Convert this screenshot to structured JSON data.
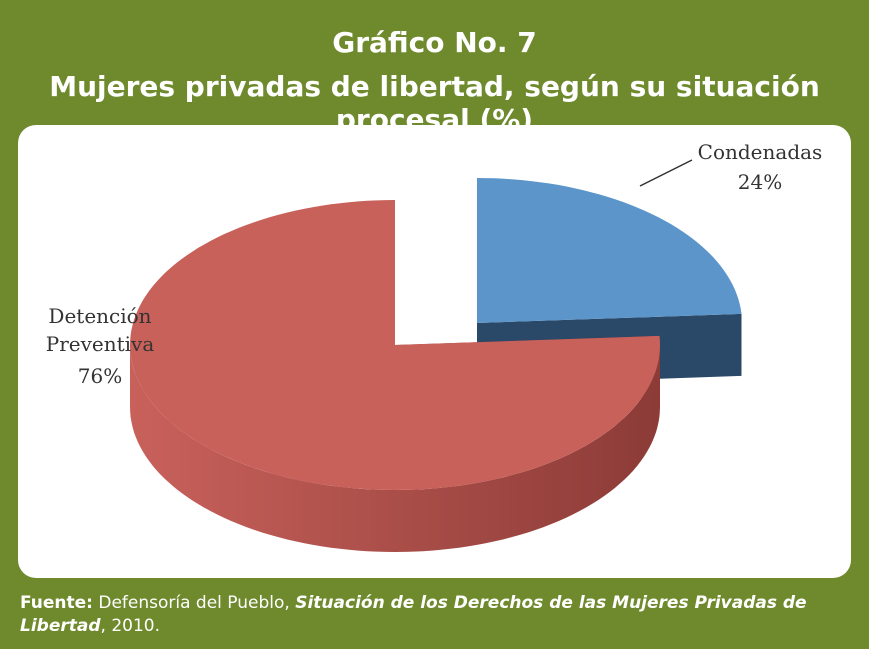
{
  "chart_data": {
    "type": "pie",
    "title": "Gráfico No. 7",
    "subtitle": "Mujeres privadas de libertad, según su situación procesal (%)",
    "categories": [
      "Condenadas",
      "Detención Preventiva"
    ],
    "values": [
      24,
      76
    ],
    "value_labels": [
      "24%",
      "76%"
    ],
    "colors": [
      "#5b95c9",
      "#c9615b"
    ],
    "side_colors": [
      "#2a4867",
      "#8c3b37"
    ]
  },
  "source": {
    "label": "Fuente:",
    "author": "Defensoría del Pueblo,",
    "work": "Situación de los Derechos de las Mujeres Privadas de Libertad",
    "year": ", 2010."
  }
}
